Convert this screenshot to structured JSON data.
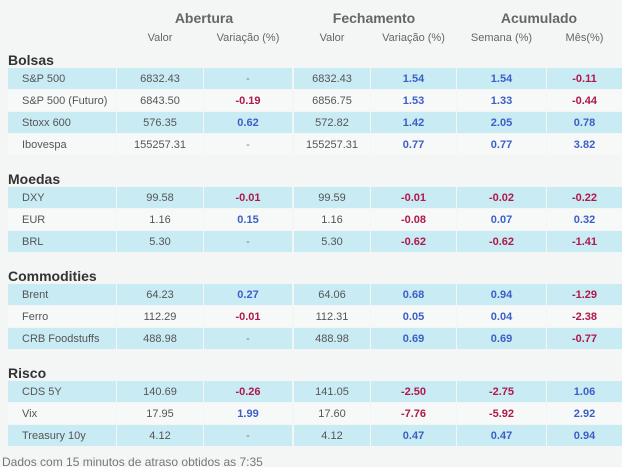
{
  "header": {
    "groups": [
      {
        "title": "Abertura",
        "columns": [
          "Valor",
          "Variação (%)"
        ]
      },
      {
        "title": "Fechamento",
        "columns": [
          "Valor",
          "Variação (%)"
        ]
      },
      {
        "title": "Acumulado",
        "columns": [
          "Semana (%)",
          "Mês(%)"
        ]
      }
    ]
  },
  "sections": [
    {
      "title": "Bolsas",
      "rows": [
        [
          "S&P 500",
          "6832.43",
          "-",
          "6832.43",
          "1.54",
          "1.54",
          "-0.11"
        ],
        [
          "S&P 500 (Futuro)",
          "6843.50",
          "-0.19",
          "6856.75",
          "1.53",
          "1.33",
          "-0.44"
        ],
        [
          "Stoxx 600",
          "576.35",
          "0.62",
          "572.82",
          "1.42",
          "2.05",
          "0.78"
        ],
        [
          "Ibovespa",
          "155257.31",
          "-",
          "155257.31",
          "0.77",
          "0.77",
          "3.82"
        ]
      ]
    },
    {
      "title": "Moedas",
      "rows": [
        [
          "DXY",
          "99.58",
          "-0.01",
          "99.59",
          "-0.01",
          "-0.02",
          "-0.22"
        ],
        [
          "EUR",
          "1.16",
          "0.15",
          "1.16",
          "-0.08",
          "0.07",
          "0.32"
        ],
        [
          "BRL",
          "5.30",
          "-",
          "5.30",
          "-0.62",
          "-0.62",
          "-1.41"
        ]
      ]
    },
    {
      "title": "Commodities",
      "rows": [
        [
          "Brent",
          "64.23",
          "0.27",
          "64.06",
          "0.68",
          "0.94",
          "-1.29"
        ],
        [
          "Ferro",
          "112.29",
          "-0.01",
          "112.31",
          "0.05",
          "0.04",
          "-2.38"
        ],
        [
          "CRB Foodstuffs",
          "488.98",
          "-",
          "488.98",
          "0.69",
          "0.69",
          "-0.77"
        ]
      ]
    },
    {
      "title": "Risco",
      "rows": [
        [
          "CDS 5Y",
          "140.69",
          "-0.26",
          "141.05",
          "-2.50",
          "-2.75",
          "1.06"
        ],
        [
          "Vix",
          "17.95",
          "1.99",
          "17.60",
          "-7.76",
          "-5.92",
          "2.92"
        ],
        [
          "Treasury 10y",
          "4.12",
          "-",
          "4.12",
          "0.47",
          "0.47",
          "0.94"
        ]
      ]
    }
  ],
  "footer": "Dados com 15 minutos de atraso obtidos as 7:35"
}
